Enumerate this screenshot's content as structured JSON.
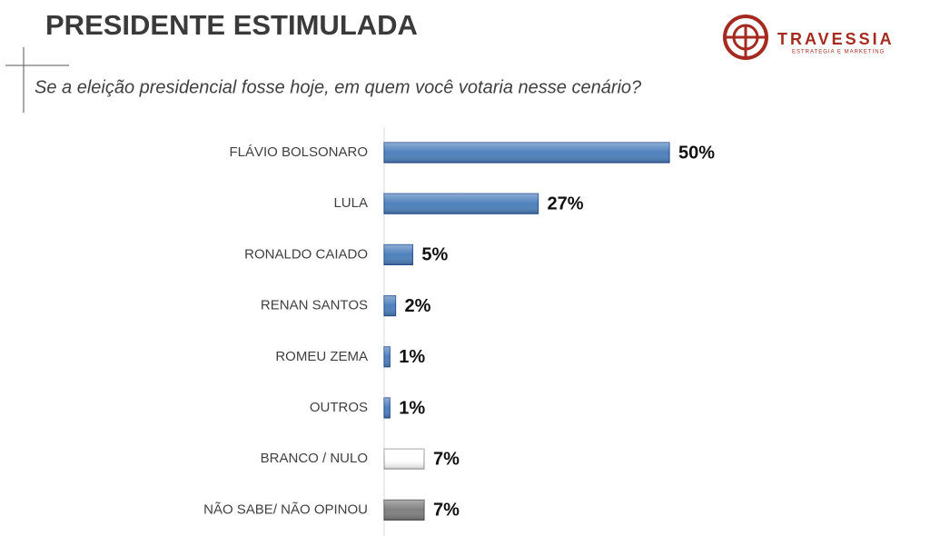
{
  "chart_data": {
    "type": "hbar",
    "title": "PRESIDENTE ESTIMULADA",
    "subtitle": "Se a eleição presidencial fosse hoje, em quem você votaria nesse cenário?",
    "categories": [
      "FLÁVIO BOLSONARO",
      "LULA",
      "RONALDO CAIADO",
      "RENAN SANTOS",
      "ROMEU ZEMA",
      "OUTROS",
      "BRANCO / NULO",
      "NÃO SABE/ NÃO OPINOU"
    ],
    "values": [
      50,
      27,
      5,
      2,
      1,
      1,
      7,
      7
    ],
    "value_labels": [
      "50%",
      "27%",
      "5%",
      "2%",
      "1%",
      "1%",
      "7%",
      "7%"
    ],
    "colors": [
      "#4f81bd",
      "#4f81bd",
      "#4f81bd",
      "#4f81bd",
      "#4f81bd",
      "#4f81bd",
      "#ffffff",
      "#808080"
    ]
  },
  "logo": {
    "name": "TRAVESSIA",
    "tagline": "ESTRATEGIA E MARKETING"
  }
}
